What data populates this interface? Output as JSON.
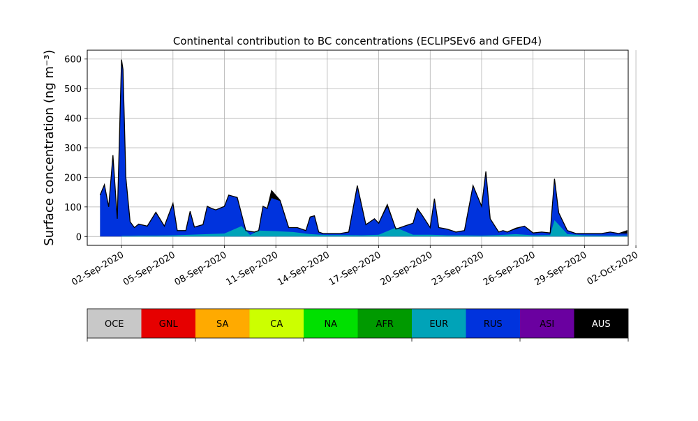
{
  "chart_data": {
    "type": "area",
    "title": "Continental contribution to BC concentrations (ECLIPSEv6 and GFED4)",
    "ylabel": "Surface concentration (ng m⁻³)",
    "xlabel": "",
    "x_start": "2020-09-01",
    "ylim": [
      -30,
      630
    ],
    "xlim_days": [
      -1.0,
      30.55
    ],
    "grid": true,
    "yticks": [
      0,
      100,
      200,
      300,
      400,
      500,
      600
    ],
    "xtick_labels": [
      "02-Sep-2020",
      "05-Sep-2020",
      "08-Sep-2020",
      "11-Sep-2020",
      "14-Sep-2020",
      "17-Sep-2020",
      "20-Sep-2020",
      "23-Sep-2020",
      "26-Sep-2020",
      "29-Sep-2020",
      "02-Oct-2020"
    ],
    "legend": {
      "placement": "bottom",
      "entries": [
        {
          "label": "OCE",
          "color": "#c8c8c8",
          "text_color": "#000000"
        },
        {
          "label": "GNL",
          "color": "#e60000",
          "text_color": "#000000"
        },
        {
          "label": "SA",
          "color": "#ffaa00",
          "text_color": "#000000"
        },
        {
          "label": "CA",
          "color": "#ccff00",
          "text_color": "#000000"
        },
        {
          "label": "NA",
          "color": "#00e000",
          "text_color": "#000000"
        },
        {
          "label": "AFR",
          "color": "#009a00",
          "text_color": "#000000"
        },
        {
          "label": "EUR",
          "color": "#00a3b8",
          "text_color": "#000000"
        },
        {
          "label": "RUS",
          "color": "#0033dd",
          "text_color": "#000000"
        },
        {
          "label": "ASI",
          "color": "#6a00a0",
          "text_color": "#000000"
        },
        {
          "label": "AUS",
          "color": "#000000",
          "text_color": "#ffffff"
        }
      ]
    },
    "series": [
      {
        "name": "EUR",
        "color": "#00a3b8",
        "x": [
          "2020-09-02 00:00",
          "2020-09-02 12:00",
          "2020-09-03 00:00",
          "2020-09-04 00:00",
          "2020-09-05 00:00",
          "2020-09-06 00:00",
          "2020-09-07 00:00",
          "2020-09-08 00:00",
          "2020-09-09 00:00",
          "2020-09-09 12:00",
          "2020-09-10 00:00",
          "2020-09-11 00:00",
          "2020-09-12 00:00",
          "2020-09-13 00:00",
          "2020-09-14 00:00",
          "2020-09-15 00:00",
          "2020-09-16 00:00",
          "2020-09-17 00:00",
          "2020-09-18 00:00",
          "2020-09-19 00:00",
          "2020-09-20 00:00",
          "2020-09-21 00:00",
          "2020-09-22 00:00",
          "2020-09-23 00:00",
          "2020-09-24 00:00",
          "2020-09-25 00:00",
          "2020-09-26 00:00",
          "2020-09-27 00:00",
          "2020-09-27 06:00",
          "2020-09-28 00:00",
          "2020-09-29 00:00",
          "2020-09-30 00:00",
          "2020-10-01 00:00",
          "2020-10-01 12:00"
        ],
        "y": [
          2,
          2,
          3,
          3,
          4,
          6,
          8,
          10,
          35,
          5,
          20,
          18,
          15,
          8,
          5,
          5,
          4,
          6,
          30,
          6,
          6,
          4,
          4,
          3,
          5,
          8,
          4,
          5,
          55,
          8,
          4,
          3,
          3,
          3
        ]
      },
      {
        "name": "RUS",
        "color": "#0033dd",
        "x": [
          "2020-08-31 18:00",
          "2020-09-01 00:00",
          "2020-09-01 06:00",
          "2020-09-01 12:00",
          "2020-09-01 18:00",
          "2020-09-02 00:00",
          "2020-09-02 02:00",
          "2020-09-02 06:00",
          "2020-09-02 12:00",
          "2020-09-02 18:00",
          "2020-09-03 00:00",
          "2020-09-03 12:00",
          "2020-09-04 00:00",
          "2020-09-04 12:00",
          "2020-09-05 00:00",
          "2020-09-05 06:00",
          "2020-09-05 18:00",
          "2020-09-06 00:00",
          "2020-09-06 06:00",
          "2020-09-06 18:00",
          "2020-09-07 00:00",
          "2020-09-07 06:00",
          "2020-09-07 12:00",
          "2020-09-08 00:00",
          "2020-09-08 06:00",
          "2020-09-08 18:00",
          "2020-09-09 06:00",
          "2020-09-09 18:00",
          "2020-09-10 00:00",
          "2020-09-10 06:00",
          "2020-09-10 12:00",
          "2020-09-10 18:00",
          "2020-09-11 06:00",
          "2020-09-11 18:00",
          "2020-09-12 06:00",
          "2020-09-12 18:00",
          "2020-09-13 00:00",
          "2020-09-13 06:00",
          "2020-09-13 12:00",
          "2020-09-13 18:00",
          "2020-09-14 06:00",
          "2020-09-14 18:00",
          "2020-09-15 06:00",
          "2020-09-15 18:00",
          "2020-09-16 06:00",
          "2020-09-16 18:00",
          "2020-09-17 00:00",
          "2020-09-17 12:00",
          "2020-09-18 00:00",
          "2020-09-18 12:00",
          "2020-09-19 00:00",
          "2020-09-19 06:00",
          "2020-09-19 12:00",
          "2020-09-20 00:00",
          "2020-09-20 06:00",
          "2020-09-20 12:00",
          "2020-09-21 00:00",
          "2020-09-21 06:00",
          "2020-09-21 12:00",
          "2020-09-22 00:00",
          "2020-09-22 12:00",
          "2020-09-23 00:00",
          "2020-09-23 06:00",
          "2020-09-23 12:00",
          "2020-09-24 00:00",
          "2020-09-24 06:00",
          "2020-09-24 12:00",
          "2020-09-25 00:00",
          "2020-09-25 12:00",
          "2020-09-26 00:00",
          "2020-09-26 12:00",
          "2020-09-27 00:00",
          "2020-09-27 06:00",
          "2020-09-27 12:00",
          "2020-09-28 00:00",
          "2020-09-28 12:00",
          "2020-09-29 00:00",
          "2020-09-29 12:00",
          "2020-09-30 00:00",
          "2020-09-30 12:00",
          "2020-10-01 00:00",
          "2020-10-01 12:00"
        ],
        "y": [
          140,
          175,
          100,
          270,
          60,
          595,
          560,
          200,
          50,
          30,
          40,
          35,
          80,
          35,
          110,
          20,
          20,
          85,
          30,
          40,
          100,
          95,
          90,
          100,
          140,
          130,
          20,
          15,
          20,
          100,
          95,
          130,
          120,
          30,
          30,
          20,
          65,
          70,
          15,
          10,
          10,
          10,
          15,
          170,
          40,
          60,
          45,
          100,
          25,
          35,
          45,
          90,
          75,
          30,
          125,
          30,
          25,
          20,
          15,
          20,
          170,
          100,
          220,
          60,
          15,
          20,
          15,
          25,
          35,
          10,
          15,
          10,
          195,
          80,
          20,
          10,
          10,
          10,
          10,
          15,
          10,
          10
        ]
      }
    ],
    "total_outline": {
      "name": "AUS",
      "color": "#000000",
      "x": [
        "2020-08-31 18:00",
        "2020-09-01 00:00",
        "2020-09-01 06:00",
        "2020-09-01 12:00",
        "2020-09-01 18:00",
        "2020-09-02 00:00",
        "2020-09-02 02:00",
        "2020-09-02 06:00",
        "2020-09-02 12:00",
        "2020-09-02 18:00",
        "2020-09-03 00:00",
        "2020-09-03 12:00",
        "2020-09-04 00:00",
        "2020-09-04 12:00",
        "2020-09-05 00:00",
        "2020-09-05 06:00",
        "2020-09-05 18:00",
        "2020-09-06 00:00",
        "2020-09-06 06:00",
        "2020-09-06 18:00",
        "2020-09-07 00:00",
        "2020-09-07 06:00",
        "2020-09-07 12:00",
        "2020-09-08 00:00",
        "2020-09-08 06:00",
        "2020-09-08 18:00",
        "2020-09-09 06:00",
        "2020-09-09 18:00",
        "2020-09-10 00:00",
        "2020-09-10 06:00",
        "2020-09-10 12:00",
        "2020-09-10 18:00",
        "2020-09-11 06:00",
        "2020-09-11 18:00",
        "2020-09-12 06:00",
        "2020-09-12 18:00",
        "2020-09-13 00:00",
        "2020-09-13 06:00",
        "2020-09-13 12:00",
        "2020-09-13 18:00",
        "2020-09-14 06:00",
        "2020-09-14 18:00",
        "2020-09-15 06:00",
        "2020-09-15 18:00",
        "2020-09-16 06:00",
        "2020-09-16 18:00",
        "2020-09-17 00:00",
        "2020-09-17 12:00",
        "2020-09-18 00:00",
        "2020-09-18 12:00",
        "2020-09-19 00:00",
        "2020-09-19 06:00",
        "2020-09-19 12:00",
        "2020-09-20 00:00",
        "2020-09-20 06:00",
        "2020-09-20 12:00",
        "2020-09-21 00:00",
        "2020-09-21 06:00",
        "2020-09-21 12:00",
        "2020-09-22 00:00",
        "2020-09-22 12:00",
        "2020-09-23 00:00",
        "2020-09-23 06:00",
        "2020-09-23 12:00",
        "2020-09-24 00:00",
        "2020-09-24 06:00",
        "2020-09-24 12:00",
        "2020-09-25 00:00",
        "2020-09-25 12:00",
        "2020-09-26 00:00",
        "2020-09-26 12:00",
        "2020-09-27 00:00",
        "2020-09-27 06:00",
        "2020-09-27 12:00",
        "2020-09-28 00:00",
        "2020-09-28 12:00",
        "2020-09-29 00:00",
        "2020-09-29 12:00",
        "2020-09-30 00:00",
        "2020-09-30 12:00",
        "2020-10-01 00:00",
        "2020-10-01 12:00"
      ],
      "y": [
        140,
        175,
        100,
        275,
        60,
        598,
        565,
        200,
        50,
        30,
        42,
        35,
        82,
        35,
        112,
        20,
        20,
        85,
        32,
        40,
        102,
        95,
        90,
        102,
        140,
        132,
        20,
        15,
        20,
        102,
        95,
        155,
        122,
        30,
        30,
        20,
        66,
        70,
        15,
        10,
        10,
        10,
        15,
        172,
        40,
        60,
        45,
        108,
        25,
        35,
        45,
        95,
        75,
        30,
        128,
        30,
        25,
        20,
        15,
        20,
        172,
        102,
        220,
        60,
        15,
        20,
        15,
        28,
        35,
        12,
        15,
        12,
        195,
        80,
        20,
        10,
        10,
        10,
        10,
        15,
        10,
        20
      ]
    }
  }
}
